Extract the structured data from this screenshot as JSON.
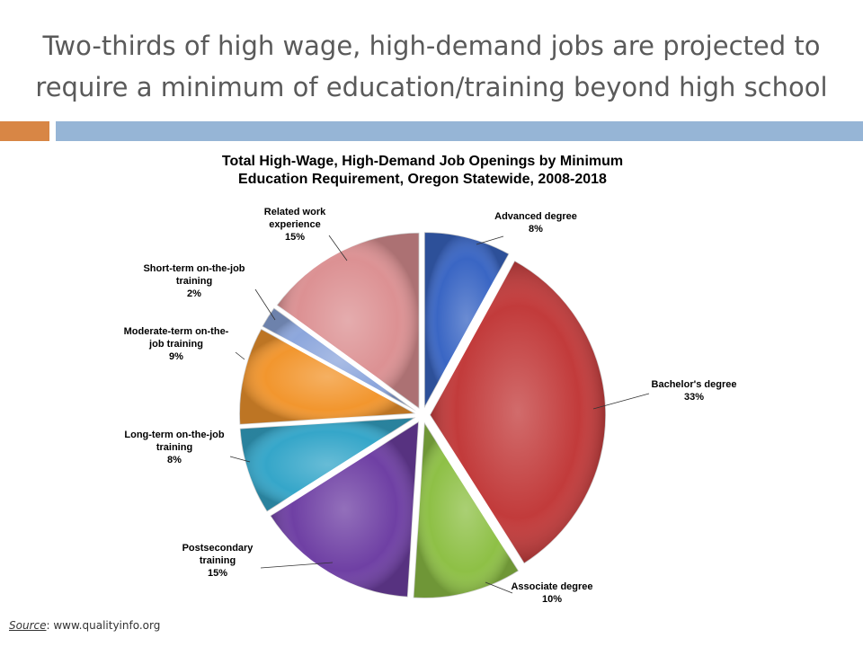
{
  "slide": {
    "title_line1": "Two-thirds of high wage, high-demand jobs are projected to",
    "title_line2": "require a minimum of education/training beyond high school"
  },
  "source": {
    "label": "Source",
    "sep": ": ",
    "url": "www.qualityinfo.org"
  },
  "colors": {
    "accent_left": "#d88645",
    "accent_right": "#96b5d6"
  },
  "chart_data": {
    "type": "pie",
    "title_line1": "Total High-Wage, High-Demand Job Openings by Minimum",
    "title_line2": "Education Requirement, Oregon Statewide, 2008-2018",
    "slices": [
      {
        "id": "advanced",
        "label_lines": [
          "Advanced degree",
          "8%"
        ],
        "value": 8,
        "color": "#3a66c4"
      },
      {
        "id": "bachelors",
        "label_lines": [
          "Bachelor's degree",
          "33%"
        ],
        "value": 33,
        "color": "#c23b3b"
      },
      {
        "id": "associate",
        "label_lines": [
          "Associate degree",
          "10%"
        ],
        "value": 10,
        "color": "#8ec046"
      },
      {
        "id": "postsecondary",
        "label_lines": [
          "Postsecondary",
          "training",
          "15%"
        ],
        "value": 15,
        "color": "#6f40a4"
      },
      {
        "id": "long-term",
        "label_lines": [
          "Long-term on-the-job",
          "training",
          "8%"
        ],
        "value": 8,
        "color": "#35a6c9"
      },
      {
        "id": "moderate-term",
        "label_lines": [
          "Moderate-term on-the-",
          "job training",
          "9%"
        ],
        "value": 9,
        "color": "#f2962e"
      },
      {
        "id": "short-term",
        "label_lines": [
          "Short-term on-the-job",
          "training",
          "2%"
        ],
        "value": 2,
        "color": "#8ca6dc"
      },
      {
        "id": "related-work",
        "label_lines": [
          "Related work",
          "experience",
          "15%"
        ],
        "value": 15,
        "color": "#dc9193"
      }
    ]
  }
}
